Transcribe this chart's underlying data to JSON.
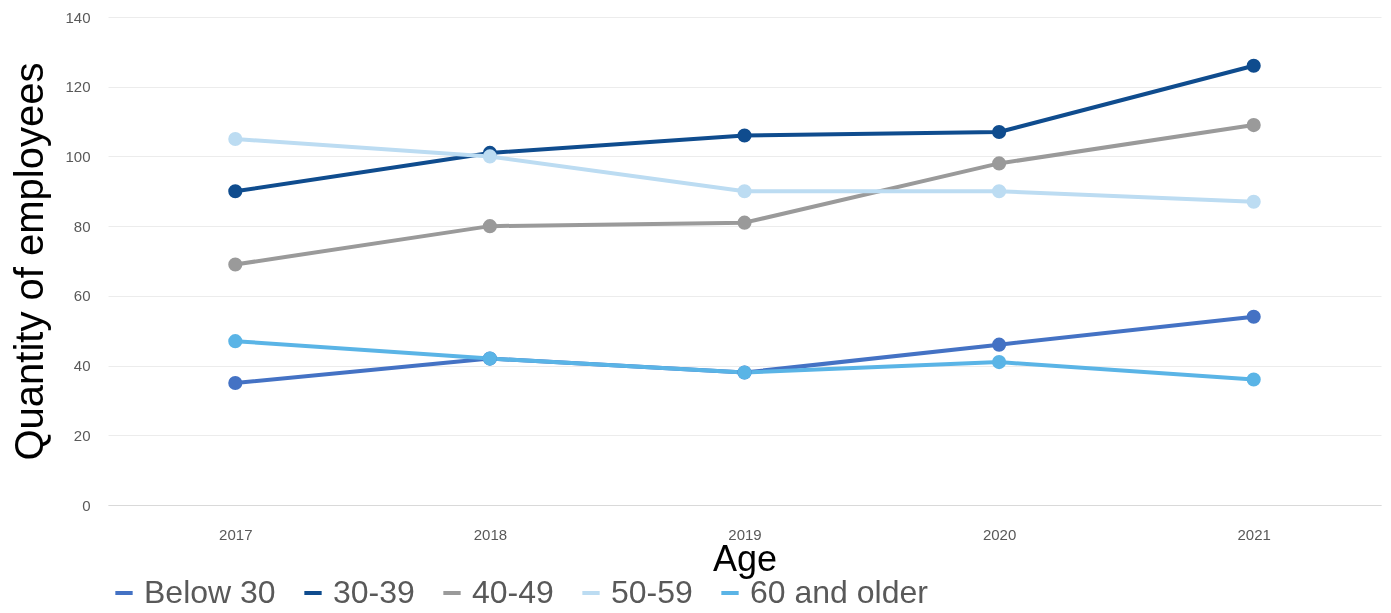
{
  "chart_data": {
    "type": "line",
    "xlabel": "Age",
    "ylabel": "Quantity of employees",
    "categories": [
      "2017",
      "2018",
      "2019",
      "2020",
      "2021"
    ],
    "series": [
      {
        "name": "Below 30",
        "color": "#4472c4",
        "values": [
          35,
          42,
          38,
          46,
          54
        ]
      },
      {
        "name": "30-39",
        "color": "#0f4c8e",
        "values": [
          90,
          101,
          106,
          107,
          126
        ]
      },
      {
        "name": "40-49",
        "color": "#9a9a9a",
        "values": [
          69,
          80,
          81,
          98,
          109
        ]
      },
      {
        "name": "50-59",
        "color": "#bcdcf2",
        "values": [
          105,
          100,
          90,
          90,
          87
        ]
      },
      {
        "name": "60 and older",
        "color": "#5ab4e6",
        "values": [
          47,
          42,
          38,
          41,
          36
        ]
      }
    ],
    "ylim": [
      0,
      140
    ],
    "yticks": [
      0,
      20,
      40,
      60,
      80,
      100,
      120,
      140
    ],
    "grid": "y",
    "legend": "bottom",
    "marker": "circle",
    "line_style": "solid"
  }
}
